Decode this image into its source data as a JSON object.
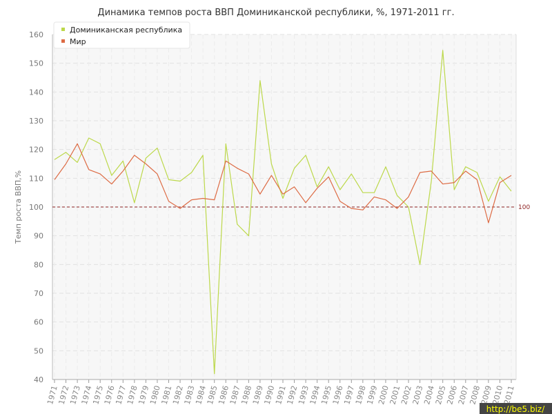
{
  "chart_data": {
    "type": "line",
    "title": "Динамика темпов роста ВВП Доминиканской республики, %, 1971-2011 гг.",
    "xlabel": "",
    "ylabel": "Темп роста ВВП,%",
    "ylim": [
      40,
      160
    ],
    "yticks": [
      40,
      50,
      60,
      70,
      80,
      90,
      100,
      110,
      120,
      130,
      140,
      150,
      160
    ],
    "grid": true,
    "legend_position": "top-left",
    "categories": [
      "1971",
      "1972",
      "1973",
      "1974",
      "1975",
      "1976",
      "1977",
      "1978",
      "1979",
      "1980",
      "1981",
      "1982",
      "1983",
      "1984",
      "1985",
      "1986",
      "1987",
      "1988",
      "1989",
      "1990",
      "1991",
      "1992",
      "1993",
      "1994",
      "1995",
      "1996",
      "1997",
      "1998",
      "1999",
      "2000",
      "2001",
      "2002",
      "2003",
      "2004",
      "2005",
      "2006",
      "2007",
      "2008",
      "2009",
      "2010",
      "2011"
    ],
    "series": [
      {
        "name": "Доминиканская республика",
        "color": "#bcd84a",
        "values": [
          116.5,
          119.0,
          115.5,
          124.0,
          122.0,
          111.0,
          116.0,
          101.5,
          117.0,
          120.5,
          109.5,
          109.0,
          112.0,
          118.0,
          42.0,
          122.0,
          94.0,
          90.0,
          144.0,
          115.0,
          103.0,
          113.5,
          118.0,
          107.0,
          114.0,
          106.0,
          111.5,
          105.0,
          105.0,
          114.0,
          104.0,
          100.0,
          80.0,
          109.0,
          154.5,
          106.0,
          114.0,
          112.0,
          102.0,
          110.5,
          105.5
        ]
      },
      {
        "name": "Мир",
        "color": "#dd6b44",
        "values": [
          109.5,
          115.0,
          122.0,
          113.0,
          111.5,
          108.0,
          112.5,
          118.0,
          115.0,
          111.5,
          102.0,
          99.5,
          102.5,
          103.0,
          102.5,
          116.0,
          113.5,
          111.5,
          104.5,
          111.0,
          104.5,
          107.0,
          101.5,
          106.5,
          110.5,
          102.0,
          99.5,
          99.0,
          103.5,
          102.5,
          99.5,
          103.5,
          112.0,
          112.5,
          108.0,
          108.5,
          112.5,
          109.5,
          94.5,
          108.5,
          111.0
        ]
      }
    ],
    "reference_line": {
      "value": 100,
      "label": "100",
      "color": "#8b1e1e"
    }
  },
  "watermark": {
    "text": "http://be5.biz/"
  }
}
